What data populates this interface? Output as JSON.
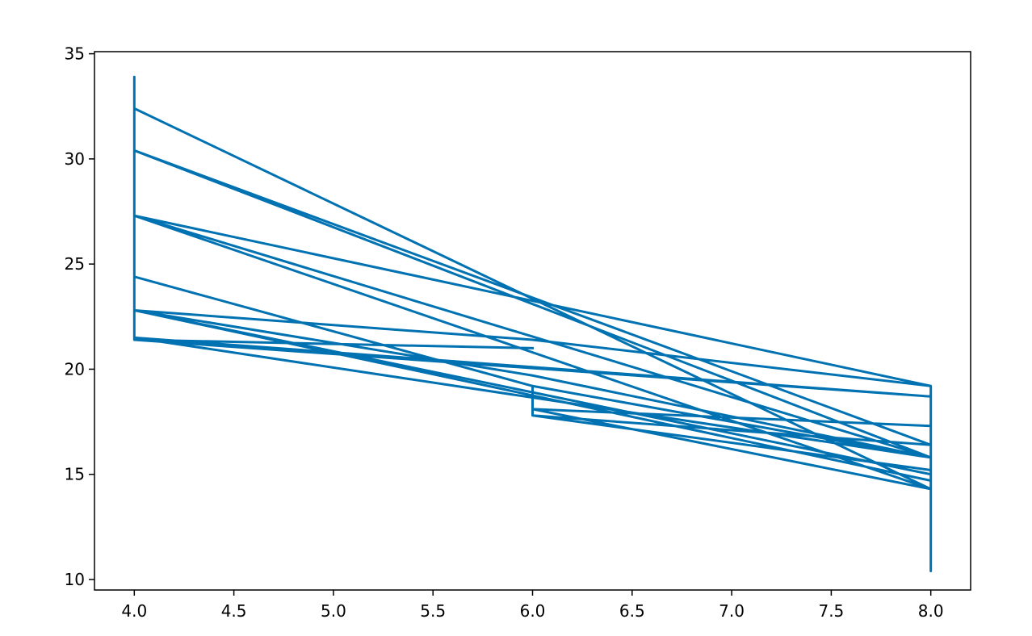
{
  "chart_data": {
    "type": "line",
    "title": "",
    "xlabel": "",
    "ylabel": "",
    "xlim": [
      3.8,
      8.2
    ],
    "ylim": [
      9.5,
      35.1
    ],
    "x_ticks": [
      4.0,
      4.5,
      5.0,
      5.5,
      6.0,
      6.5,
      7.0,
      7.5,
      8.0
    ],
    "x_tick_labels": [
      "4.0",
      "4.5",
      "5.0",
      "5.5",
      "6.0",
      "6.5",
      "7.0",
      "7.5",
      "8.0"
    ],
    "y_ticks": [
      10,
      15,
      20,
      25,
      30,
      35
    ],
    "y_tick_labels": [
      "10",
      "15",
      "20",
      "25",
      "30",
      "35"
    ],
    "grid": false,
    "legend": "none",
    "color": "#0072B2",
    "series": [
      {
        "x": [
          8,
          8,
          6,
          4,
          4,
          8,
          8,
          8,
          8,
          8,
          8,
          8,
          8,
          8,
          8,
          8,
          4,
          4,
          4,
          4,
          4,
          6,
          6,
          8,
          8,
          6,
          6,
          8,
          8,
          8,
          8,
          8,
          8,
          4,
          4,
          8,
          6,
          4,
          8,
          4,
          8,
          8,
          4,
          8,
          6,
          6,
          8,
          4,
          8,
          4,
          6
        ],
        "y": [
          18.7,
          19.2,
          21.4,
          22.8,
          32.4,
          14.3,
          14.3,
          17.2,
          10.4,
          10.4,
          14.7,
          15.2,
          13.3,
          15.8,
          15.0,
          16.4,
          30.4,
          33.9,
          21.5,
          21.4,
          24.4,
          19.2,
          17.8,
          16.4,
          17.3,
          18.1,
          17.8,
          15.2,
          14.3,
          15.5,
          15.2,
          18.7,
          19.2,
          27.3,
          30.4,
          15.8,
          19.7,
          22.8,
          15.0,
          22.8,
          14.7,
          15.8,
          27.3,
          14.3,
          18.1,
          19.2,
          15.8,
          21.5,
          18.7,
          21.4,
          21.0
        ]
      }
    ]
  }
}
